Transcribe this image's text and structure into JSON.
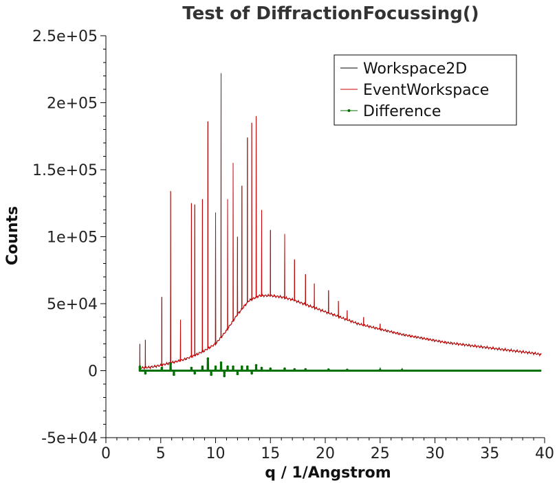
{
  "chart_data": {
    "type": "line",
    "title": "Test of DiffractionFocussing()",
    "xlabel": "q / 1/Angstrom",
    "ylabel": "Counts",
    "xlim": [
      0,
      40
    ],
    "ylim": [
      -50000,
      250000
    ],
    "x_ticks": [
      0,
      5,
      10,
      15,
      20,
      25,
      30,
      35,
      40
    ],
    "x_tick_labels": [
      "0",
      "5",
      "10",
      "15",
      "20",
      "25",
      "30",
      "35",
      "40"
    ],
    "y_ticks": [
      -50000,
      0,
      50000,
      100000,
      150000,
      200000,
      250000
    ],
    "y_tick_labels": [
      "-5e+04",
      "0",
      "5e+04",
      "1e+05",
      "1.5e+05",
      "2e+05",
      "2.5e+05"
    ],
    "grid": false,
    "legend_position": "top-right",
    "series": [
      {
        "name": "Workspace2D",
        "color": "#000000",
        "style": "line",
        "note_data": "baseline values",
        "baseline": [
          [
            3.0,
            2000
          ],
          [
            4,
            2500
          ],
          [
            5,
            4000
          ],
          [
            6,
            6000
          ],
          [
            7,
            8000
          ],
          [
            8,
            11000
          ],
          [
            9,
            15000
          ],
          [
            10,
            20000
          ],
          [
            11,
            30000
          ],
          [
            12,
            42000
          ],
          [
            13,
            52000
          ],
          [
            14,
            56000
          ],
          [
            15,
            56000
          ],
          [
            16,
            55000
          ],
          [
            17,
            53000
          ],
          [
            18,
            50000
          ],
          [
            19,
            47000
          ],
          [
            20,
            44000
          ],
          [
            21,
            41000
          ],
          [
            22,
            38000
          ],
          [
            23,
            35000
          ],
          [
            24,
            33000
          ],
          [
            25,
            31000
          ],
          [
            26,
            29000
          ],
          [
            27,
            27000
          ],
          [
            28,
            25500
          ],
          [
            29,
            24000
          ],
          [
            30,
            22500
          ],
          [
            31,
            21000
          ],
          [
            32,
            20000
          ],
          [
            33,
            19000
          ],
          [
            34,
            18000
          ],
          [
            35,
            17000
          ],
          [
            36,
            16000
          ],
          [
            37,
            15000
          ],
          [
            38,
            14000
          ],
          [
            39,
            13000
          ],
          [
            39.7,
            12000
          ]
        ],
        "peaks": [
          [
            3.1,
            20000
          ],
          [
            3.6,
            23000
          ],
          [
            5.1,
            55000
          ],
          [
            5.9,
            134000
          ],
          [
            6.8,
            38000
          ],
          [
            7.8,
            125000
          ],
          [
            8.1,
            124000
          ],
          [
            8.8,
            128000
          ],
          [
            9.3,
            186000
          ],
          [
            10.0,
            118000
          ],
          [
            10.5,
            222000
          ],
          [
            11.1,
            128000
          ],
          [
            11.6,
            155000
          ],
          [
            12.0,
            100000
          ],
          [
            12.4,
            138000
          ],
          [
            12.9,
            174000
          ],
          [
            13.3,
            185000
          ],
          [
            13.7,
            190000
          ],
          [
            14.2,
            120000
          ],
          [
            15.0,
            105000
          ],
          [
            16.3,
            102000
          ],
          [
            17.2,
            83000
          ],
          [
            18.2,
            72000
          ],
          [
            19.0,
            65000
          ],
          [
            20.3,
            60000
          ],
          [
            21.2,
            52000
          ],
          [
            22.0,
            45000
          ],
          [
            23.5,
            40000
          ],
          [
            25.0,
            35000
          ]
        ]
      },
      {
        "name": "EventWorkspace",
        "color": "#cc0000",
        "style": "line",
        "same_as": "Workspace2D"
      },
      {
        "name": "Difference",
        "color": "#007000",
        "style": "line+markers",
        "baseline": [
          [
            3.0,
            0
          ],
          [
            39.7,
            0
          ]
        ],
        "peaks": [
          [
            3.1,
            3000
          ],
          [
            3.6,
            -2000
          ],
          [
            5.1,
            2000
          ],
          [
            5.9,
            5000
          ],
          [
            6.2,
            -3000
          ],
          [
            7.8,
            2000
          ],
          [
            8.1,
            -2000
          ],
          [
            8.8,
            3000
          ],
          [
            9.3,
            9000
          ],
          [
            9.6,
            -3000
          ],
          [
            10.0,
            3000
          ],
          [
            10.5,
            6000
          ],
          [
            10.8,
            -4000
          ],
          [
            11.1,
            3000
          ],
          [
            11.6,
            3000
          ],
          [
            12.0,
            -2500
          ],
          [
            12.4,
            3000
          ],
          [
            12.9,
            3000
          ],
          [
            13.3,
            -2000
          ],
          [
            13.7,
            4000
          ],
          [
            14.2,
            2000
          ],
          [
            15.0,
            1500
          ],
          [
            16.3,
            1500
          ],
          [
            17.2,
            1000
          ],
          [
            18.2,
            1000
          ],
          [
            20.3,
            800
          ],
          [
            22.0,
            600
          ],
          [
            25.0,
            500
          ],
          [
            27.0,
            400
          ]
        ]
      }
    ]
  }
}
